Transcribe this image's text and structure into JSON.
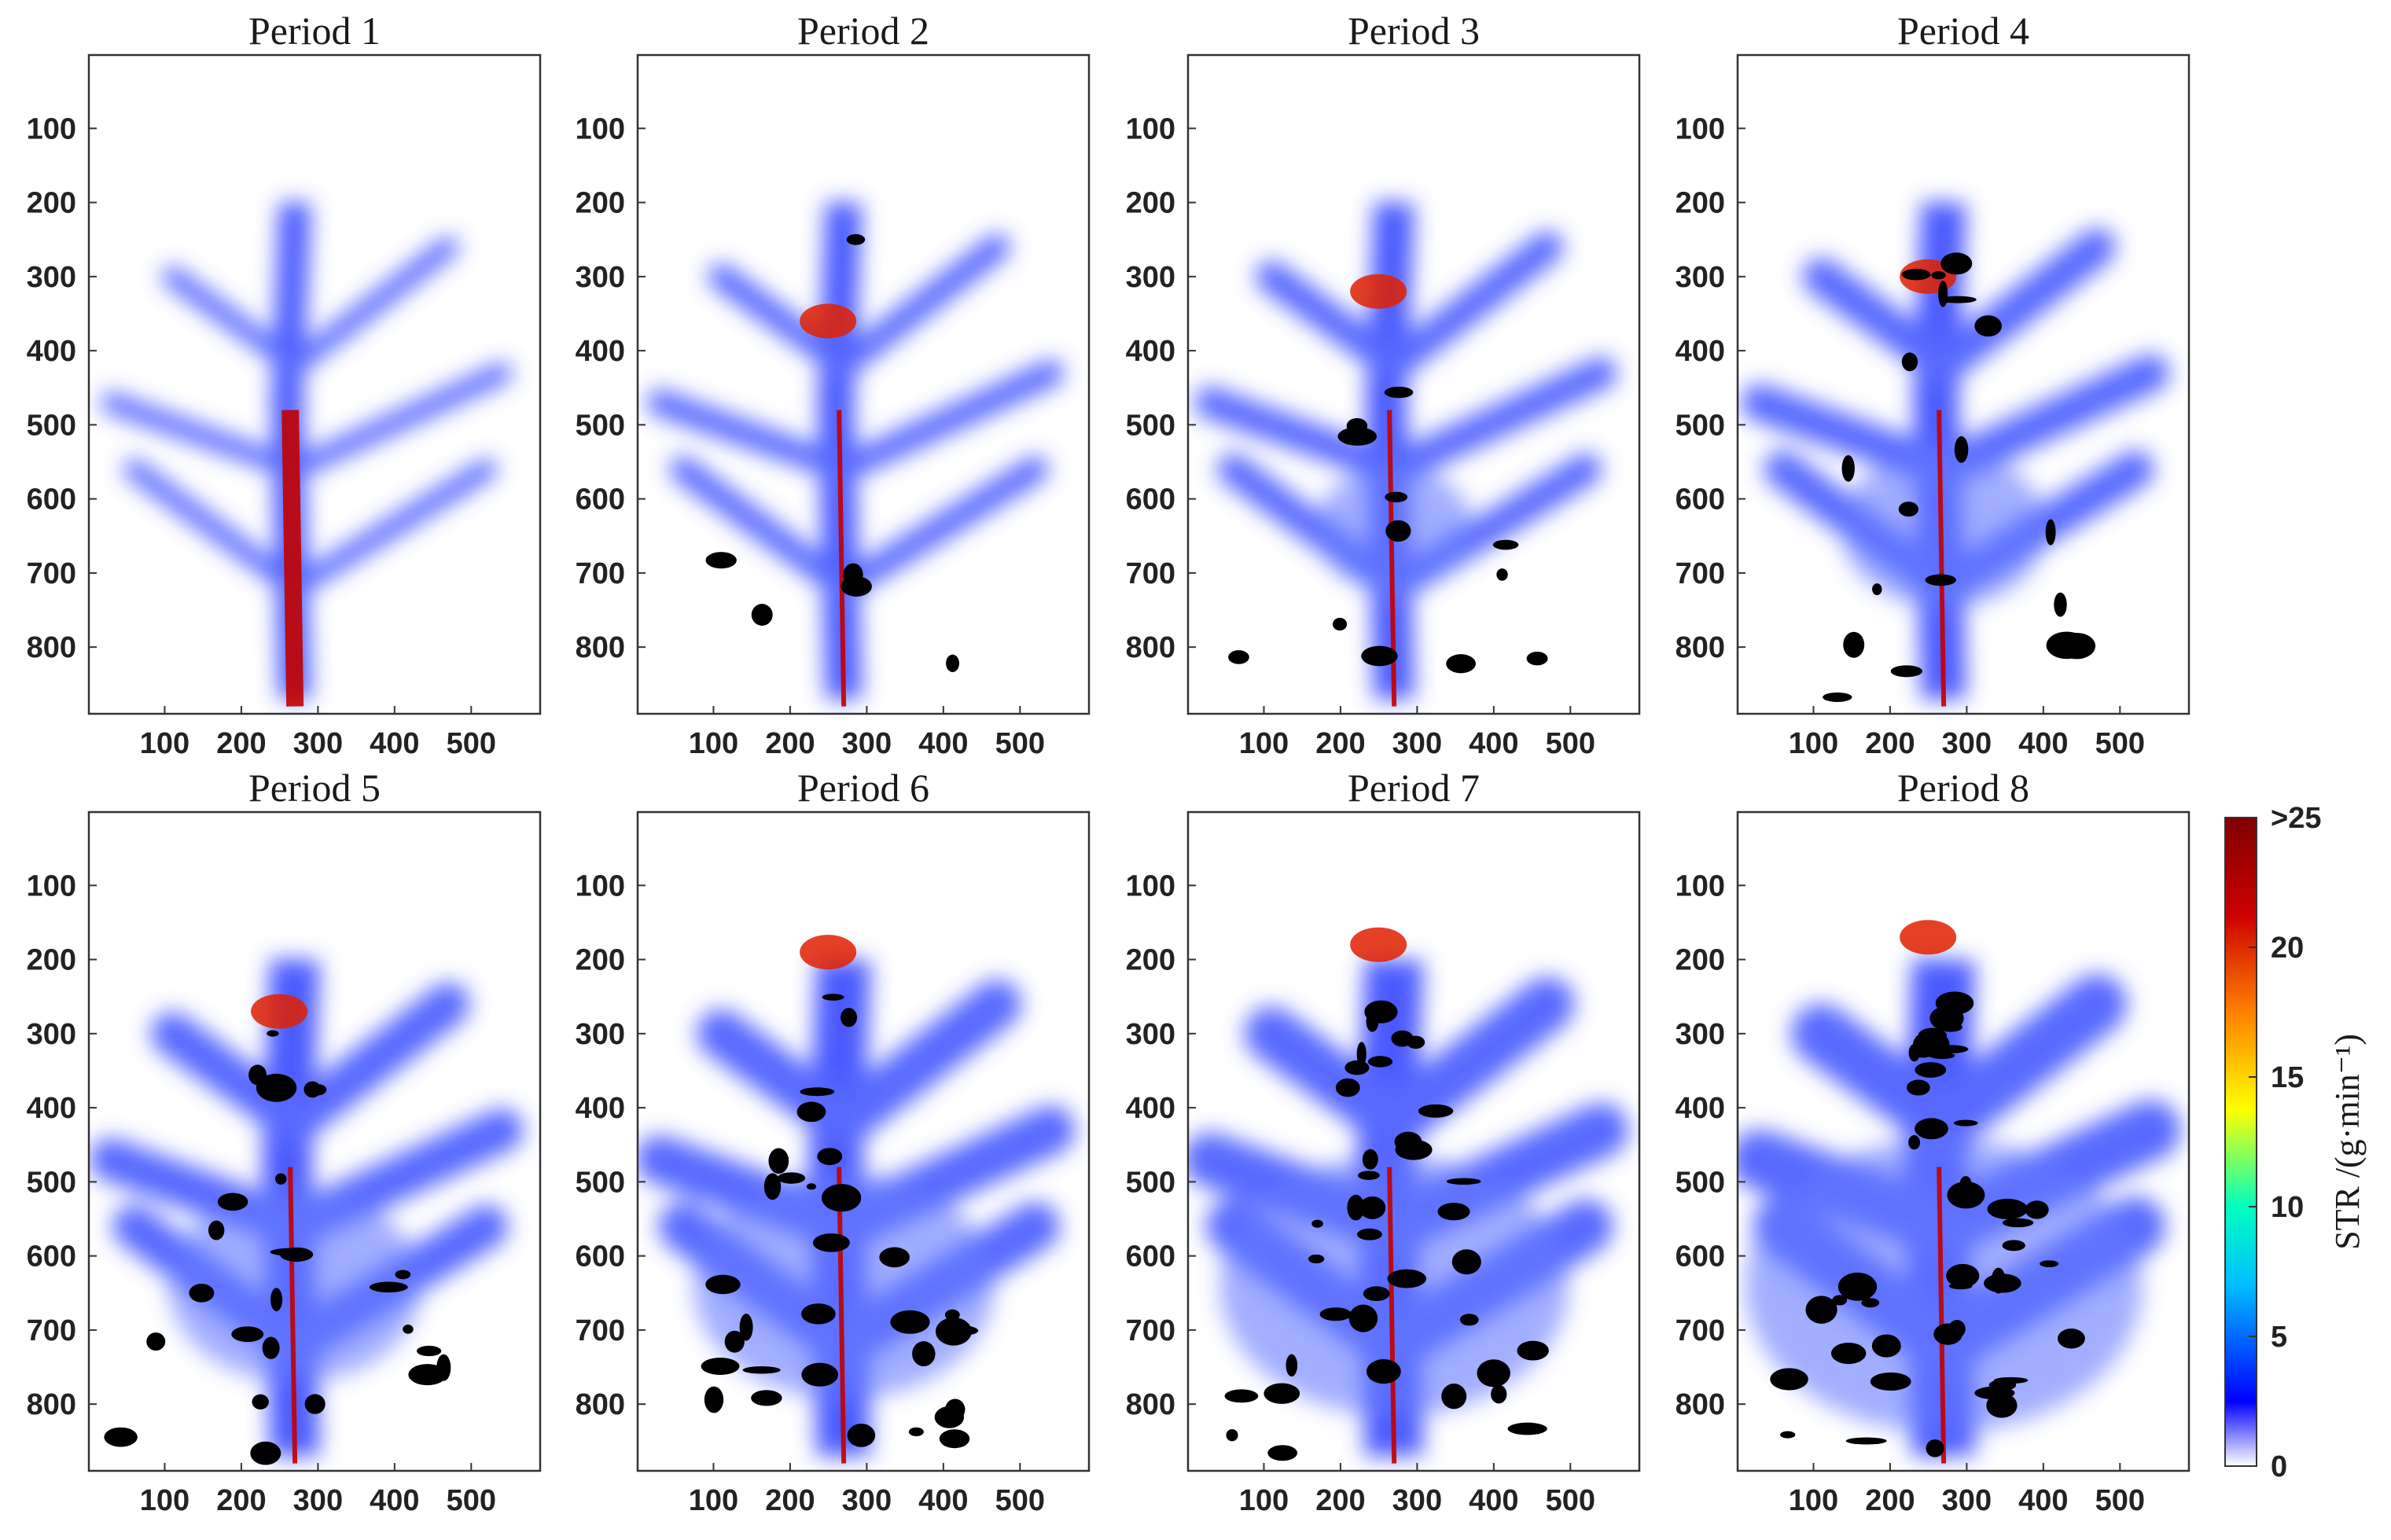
{
  "chart_data": {
    "type": "heatmap",
    "title": "",
    "layout": "2 rows x 4 columns of image panels with a shared vertical colorbar",
    "panels": [
      {
        "title": "Period 1"
      },
      {
        "title": "Period 2"
      },
      {
        "title": "Period 3"
      },
      {
        "title": "Period 4"
      },
      {
        "title": "Period 5"
      },
      {
        "title": "Period 6"
      },
      {
        "title": "Period 7"
      },
      {
        "title": "Period 8"
      }
    ],
    "x_axis": {
      "range": [
        1,
        590
      ],
      "tick_labels": [
        "100",
        "200",
        "300",
        "400",
        "500"
      ]
    },
    "y_axis": {
      "range": [
        1,
        890
      ],
      "reversed": true,
      "tick_labels": [
        "100",
        "200",
        "300",
        "400",
        "500",
        "600",
        "700",
        "800"
      ]
    },
    "colorbar": {
      "title": "STR /(g·min⁻¹)",
      "range": [
        0,
        25
      ],
      "tick_labels": [
        "0",
        "5",
        "10",
        "15",
        "20",
        ">25"
      ],
      "colormap": [
        "#ffffff",
        "#0000ff",
        "#00bfff",
        "#00ffbf",
        "#ffff00",
        "#ff8000",
        "#cc0000",
        "#800000"
      ],
      "placement": "right"
    },
    "colors": {
      "background": "#ffffff",
      "low": "#0000ff",
      "high": "#800000",
      "deposit": "#000000"
    }
  }
}
